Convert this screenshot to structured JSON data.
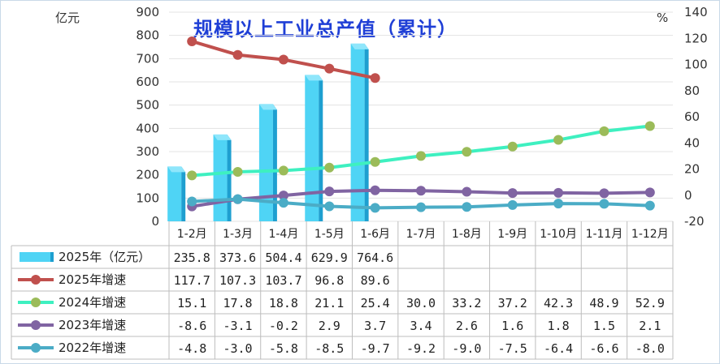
{
  "chart_data": {
    "type": "bar+line",
    "title": "规模以上工业总产值（累计）",
    "y_left_label": "亿元",
    "y_right_label": "%",
    "y_left_range": [
      0,
      900
    ],
    "y_left_ticks": [
      "0",
      "100",
      "200",
      "300",
      "400",
      "500",
      "600",
      "700",
      "800",
      "900"
    ],
    "y_right_range": [
      -20,
      140
    ],
    "y_right_ticks": [
      "-20",
      "0",
      "20",
      "40",
      "60",
      "80",
      "100",
      "120",
      "140"
    ],
    "categories": [
      "1-2月",
      "1-3月",
      "1-4月",
      "1-5月",
      "1-6月",
      "1-7月",
      "1-8月",
      "1-9月",
      "1-10月",
      "1-11月",
      "1-12月"
    ],
    "series": [
      {
        "name": "2025年（亿元）",
        "kind": "bar",
        "axis": "left",
        "color": "#4fd4f5",
        "values": [
          235.8,
          373.6,
          504.4,
          629.9,
          764.6,
          null,
          null,
          null,
          null,
          null,
          null
        ]
      },
      {
        "name": "2025年增速",
        "kind": "line",
        "axis": "right",
        "color": "#c0504d",
        "values": [
          117.7,
          107.3,
          103.7,
          96.8,
          89.6,
          null,
          null,
          null,
          null,
          null,
          null
        ]
      },
      {
        "name": "2024年增速",
        "kind": "line",
        "axis": "right",
        "color": "#3ef0c0",
        "marker": "#9bbb59",
        "values": [
          15.1,
          17.8,
          18.8,
          21.1,
          25.4,
          30.0,
          33.2,
          37.2,
          42.3,
          48.9,
          52.9
        ]
      },
      {
        "name": "2023年增速",
        "kind": "line",
        "axis": "right",
        "color": "#8064a2",
        "values": [
          -8.6,
          -3.1,
          -0.2,
          2.9,
          3.7,
          3.4,
          2.6,
          1.6,
          1.8,
          1.5,
          2.1
        ]
      },
      {
        "name": "2022年增速",
        "kind": "line",
        "axis": "right",
        "color": "#4bacc6",
        "values": [
          -4.8,
          -3.0,
          -5.8,
          -8.5,
          -9.7,
          -9.2,
          -9.0,
          -7.5,
          -6.4,
          -6.6,
          -8.0
        ]
      }
    ],
    "table": {
      "rows": [
        [
          "235.8",
          "373.6",
          "504.4",
          "629.9",
          "764.6",
          "",
          "",
          "",
          "",
          "",
          ""
        ],
        [
          "117.7",
          "107.3",
          "103.7",
          "96.8",
          "89.6",
          "",
          "",
          "",
          "",
          "",
          ""
        ],
        [
          "15.1",
          "17.8",
          "18.8",
          "21.1",
          "25.4",
          "30.0",
          "33.2",
          "37.2",
          "42.3",
          "48.9",
          "52.9"
        ],
        [
          "-8.6",
          "-3.1",
          "-0.2",
          "2.9",
          "3.7",
          "3.4",
          "2.6",
          "1.6",
          "1.8",
          "1.5",
          "2.1"
        ],
        [
          "-4.8",
          "-3.0",
          "-5.8",
          "-8.5",
          "-9.7",
          "-9.2",
          "-9.0",
          "-7.5",
          "-6.4",
          "-6.6",
          "-8.0"
        ]
      ]
    },
    "grid": true
  }
}
